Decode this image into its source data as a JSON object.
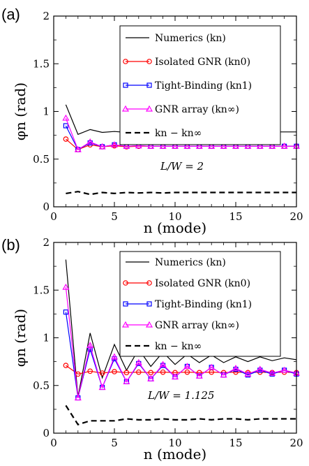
{
  "chart_data": [
    {
      "type": "line",
      "panel_label": "(a)",
      "xlabel": "n (mode)",
      "ylabel": "φn (rad)",
      "xlim": [
        0,
        20
      ],
      "ylim": [
        0,
        2
      ],
      "xticks": [
        "0",
        "5",
        "10",
        "15",
        "20"
      ],
      "yticks": [
        "0",
        "0.5",
        "1",
        "1.5",
        "2"
      ],
      "annotation": "L/W = 2",
      "legend_position": "top-right",
      "series": [
        {
          "name": "Numerics (kn)",
          "color": "#000000",
          "style": "solid",
          "marker": "none",
          "x": [
            1,
            2,
            3,
            4,
            5,
            6,
            7,
            8,
            9,
            10,
            11,
            12,
            13,
            14,
            15,
            16,
            17,
            18,
            19,
            20
          ],
          "values": [
            1.07,
            0.76,
            0.81,
            0.78,
            0.79,
            0.78,
            0.79,
            0.78,
            0.79,
            0.78,
            0.785,
            0.785,
            0.785,
            0.785,
            0.785,
            0.785,
            0.785,
            0.785,
            0.785,
            0.785
          ]
        },
        {
          "name": "Isolated GNR (kn0)",
          "color": "#ff0000",
          "style": "solid",
          "marker": "circle",
          "x": [
            1,
            2,
            3,
            4,
            5,
            6,
            7,
            8,
            9,
            10,
            11,
            12,
            13,
            14,
            15,
            16,
            17,
            18,
            19,
            20
          ],
          "values": [
            0.71,
            0.6,
            0.65,
            0.63,
            0.64,
            0.63,
            0.635,
            0.635,
            0.635,
            0.635,
            0.635,
            0.635,
            0.635,
            0.635,
            0.635,
            0.635,
            0.635,
            0.635,
            0.635,
            0.635
          ]
        },
        {
          "name": "Tight-Binding (kn1)",
          "color": "#0000ff",
          "style": "solid",
          "marker": "square",
          "x": [
            1,
            2,
            3,
            4,
            5,
            6,
            7,
            8,
            9,
            10,
            11,
            12,
            13,
            14,
            15,
            16,
            17,
            18,
            19,
            20
          ],
          "values": [
            0.85,
            0.6,
            0.67,
            0.63,
            0.65,
            0.635,
            0.64,
            0.635,
            0.635,
            0.635,
            0.635,
            0.635,
            0.635,
            0.635,
            0.635,
            0.635,
            0.635,
            0.635,
            0.635,
            0.635
          ]
        },
        {
          "name": "GNR array (kn∞)",
          "color": "#ff00ff",
          "style": "solid",
          "marker": "triangle",
          "x": [
            1,
            2,
            3,
            4,
            5,
            6,
            7,
            8,
            9,
            10,
            11,
            12,
            13,
            14,
            15,
            16,
            17,
            18,
            19,
            20
          ],
          "values": [
            0.93,
            0.6,
            0.68,
            0.63,
            0.65,
            0.635,
            0.64,
            0.635,
            0.635,
            0.635,
            0.635,
            0.635,
            0.635,
            0.635,
            0.635,
            0.635,
            0.635,
            0.635,
            0.635,
            0.635
          ]
        },
        {
          "name": "kn − kn∞",
          "color": "#000000",
          "style": "dashed",
          "marker": "none",
          "x": [
            1,
            2,
            3,
            4,
            5,
            6,
            7,
            8,
            9,
            10,
            11,
            12,
            13,
            14,
            15,
            16,
            17,
            18,
            19,
            20
          ],
          "values": [
            0.14,
            0.16,
            0.13,
            0.15,
            0.14,
            0.15,
            0.145,
            0.15,
            0.145,
            0.15,
            0.15,
            0.15,
            0.15,
            0.15,
            0.15,
            0.15,
            0.15,
            0.15,
            0.15,
            0.15
          ]
        }
      ]
    },
    {
      "type": "line",
      "panel_label": "(b)",
      "xlabel": "n (mode)",
      "ylabel": "φn (rad)",
      "xlim": [
        0,
        20
      ],
      "ylim": [
        0,
        2
      ],
      "xticks": [
        "0",
        "5",
        "10",
        "15",
        "20"
      ],
      "yticks": [
        "0",
        "0.5",
        "1",
        "1.5",
        "2"
      ],
      "annotation": "L/W = 1.125",
      "legend_position": "top-right",
      "series": [
        {
          "name": "Numerics (kn)",
          "color": "#000000",
          "style": "solid",
          "marker": "none",
          "x": [
            1,
            2,
            3,
            4,
            5,
            6,
            7,
            8,
            9,
            10,
            11,
            12,
            13,
            14,
            15,
            16,
            17,
            18,
            19,
            20
          ],
          "values": [
            1.82,
            0.38,
            1.05,
            0.58,
            0.93,
            0.66,
            0.88,
            0.7,
            0.85,
            0.72,
            0.83,
            0.74,
            0.82,
            0.74,
            0.8,
            0.75,
            0.8,
            0.76,
            0.79,
            0.77
          ]
        },
        {
          "name": "Isolated GNR (kn0)",
          "color": "#ff0000",
          "style": "solid",
          "marker": "circle",
          "x": [
            1,
            2,
            3,
            4,
            5,
            6,
            7,
            8,
            9,
            10,
            11,
            12,
            13,
            14,
            15,
            16,
            17,
            18,
            19,
            20
          ],
          "values": [
            0.71,
            0.62,
            0.65,
            0.63,
            0.645,
            0.635,
            0.64,
            0.635,
            0.64,
            0.635,
            0.64,
            0.635,
            0.64,
            0.635,
            0.64,
            0.635,
            0.64,
            0.635,
            0.64,
            0.635
          ]
        },
        {
          "name": "Tight-Binding (kn1)",
          "color": "#0000ff",
          "style": "solid",
          "marker": "square",
          "x": [
            1,
            2,
            3,
            4,
            5,
            6,
            7,
            8,
            9,
            10,
            11,
            12,
            13,
            14,
            15,
            16,
            17,
            18,
            19,
            20
          ],
          "values": [
            1.27,
            0.37,
            0.88,
            0.48,
            0.78,
            0.54,
            0.73,
            0.57,
            0.71,
            0.59,
            0.7,
            0.6,
            0.69,
            0.61,
            0.67,
            0.61,
            0.66,
            0.62,
            0.66,
            0.62
          ]
        },
        {
          "name": "GNR array (kn∞)",
          "color": "#ff00ff",
          "style": "solid",
          "marker": "triangle",
          "x": [
            1,
            2,
            3,
            4,
            5,
            6,
            7,
            8,
            9,
            10,
            11,
            12,
            13,
            14,
            15,
            16,
            17,
            18,
            19,
            20
          ],
          "values": [
            1.53,
            0.37,
            0.92,
            0.48,
            0.8,
            0.54,
            0.74,
            0.57,
            0.72,
            0.59,
            0.7,
            0.6,
            0.69,
            0.61,
            0.68,
            0.62,
            0.67,
            0.63,
            0.66,
            0.63
          ]
        },
        {
          "name": "kn − kn∞",
          "color": "#000000",
          "style": "dashed",
          "marker": "none",
          "x": [
            1,
            2,
            3,
            4,
            5,
            6,
            7,
            8,
            9,
            10,
            11,
            12,
            13,
            14,
            15,
            16,
            17,
            18,
            19,
            20
          ],
          "values": [
            0.29,
            0.09,
            0.13,
            0.13,
            0.13,
            0.15,
            0.14,
            0.14,
            0.15,
            0.14,
            0.14,
            0.15,
            0.14,
            0.15,
            0.15,
            0.14,
            0.15,
            0.15,
            0.15,
            0.15
          ]
        }
      ]
    }
  ]
}
